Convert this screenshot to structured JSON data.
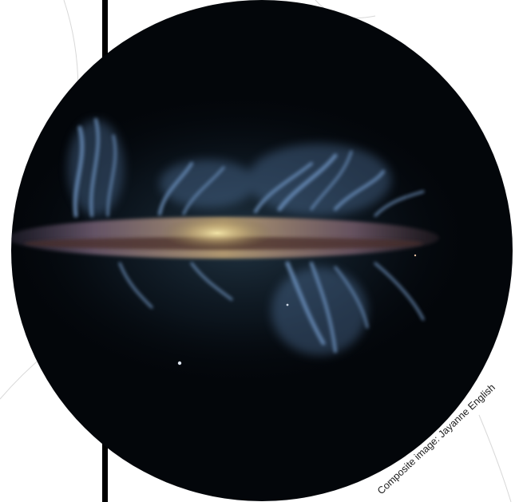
{
  "image": {
    "subject": "galaxy-edge-on",
    "colors": {
      "background": "#ffffff",
      "frame_bar": "#000000",
      "disc_space": "#03060a",
      "filaments": "#7fa6d6",
      "dust_lane": "#8a6a52",
      "core_glow": "#e7d79a",
      "halo": "#2c4a63"
    }
  },
  "credit": {
    "text": "Composite image: Jayanne English"
  }
}
